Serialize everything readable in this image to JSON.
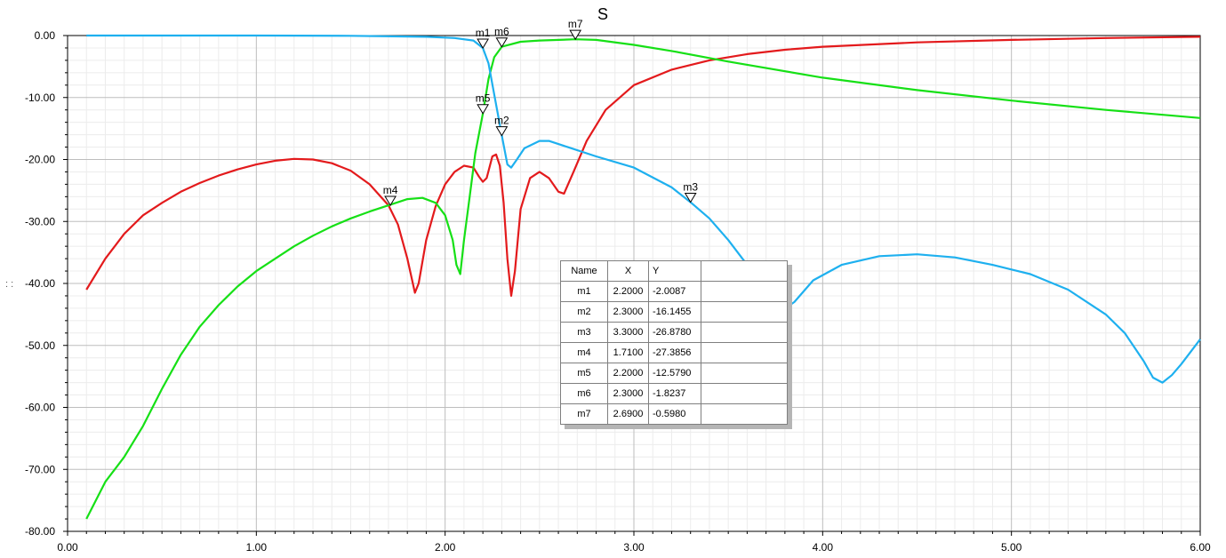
{
  "chart_data": {
    "type": "line",
    "title": "S",
    "xlim": [
      0,
      6
    ],
    "ylim": [
      -80,
      0
    ],
    "x_ticks": [
      "0.00",
      "1.00",
      "2.00",
      "3.00",
      "4.00",
      "5.00",
      "6.00"
    ],
    "y_ticks": [
      "0.00",
      "-10.00",
      "-20.00",
      "-30.00",
      "-40.00",
      "-50.00",
      "-60.00",
      "-70.00",
      "-80.00"
    ],
    "grid": true,
    "series": [
      {
        "color": "#e31a1c",
        "points": [
          [
            0.1,
            -41
          ],
          [
            0.2,
            -36
          ],
          [
            0.3,
            -32
          ],
          [
            0.4,
            -29
          ],
          [
            0.5,
            -27
          ],
          [
            0.6,
            -25.2
          ],
          [
            0.7,
            -23.8
          ],
          [
            0.8,
            -22.6
          ],
          [
            0.9,
            -21.6
          ],
          [
            1.0,
            -20.8
          ],
          [
            1.1,
            -20.2
          ],
          [
            1.2,
            -19.9
          ],
          [
            1.3,
            -20.0
          ],
          [
            1.4,
            -20.6
          ],
          [
            1.5,
            -21.8
          ],
          [
            1.6,
            -24
          ],
          [
            1.7,
            -27.4
          ],
          [
            1.75,
            -30.5
          ],
          [
            1.8,
            -36
          ],
          [
            1.84,
            -41.5
          ],
          [
            1.86,
            -40
          ],
          [
            1.9,
            -33
          ],
          [
            1.95,
            -27.5
          ],
          [
            2.0,
            -24
          ],
          [
            2.05,
            -22
          ],
          [
            2.1,
            -21
          ],
          [
            2.15,
            -21.3
          ],
          [
            2.18,
            -22.8
          ],
          [
            2.2,
            -23.6
          ],
          [
            2.22,
            -23
          ],
          [
            2.25,
            -19.5
          ],
          [
            2.27,
            -19.2
          ],
          [
            2.29,
            -21
          ],
          [
            2.31,
            -27
          ],
          [
            2.33,
            -36
          ],
          [
            2.35,
            -42
          ],
          [
            2.37,
            -38
          ],
          [
            2.4,
            -28
          ],
          [
            2.45,
            -23
          ],
          [
            2.5,
            -22
          ],
          [
            2.55,
            -23
          ],
          [
            2.6,
            -25.2
          ],
          [
            2.63,
            -25.5
          ],
          [
            2.68,
            -22
          ],
          [
            2.75,
            -17
          ],
          [
            2.85,
            -12
          ],
          [
            3.0,
            -8
          ],
          [
            3.2,
            -5.5
          ],
          [
            3.4,
            -4
          ],
          [
            3.6,
            -3
          ],
          [
            3.8,
            -2.3
          ],
          [
            4.0,
            -1.8
          ],
          [
            4.5,
            -1.1
          ],
          [
            5.0,
            -0.7
          ],
          [
            5.5,
            -0.4
          ],
          [
            6.0,
            -0.2
          ]
        ]
      },
      {
        "color": "#16e016",
        "points": [
          [
            0.1,
            -78
          ],
          [
            0.2,
            -72
          ],
          [
            0.3,
            -68
          ],
          [
            0.4,
            -63
          ],
          [
            0.5,
            -57
          ],
          [
            0.6,
            -51.5
          ],
          [
            0.7,
            -47
          ],
          [
            0.8,
            -43.5
          ],
          [
            0.9,
            -40.5
          ],
          [
            1.0,
            -38
          ],
          [
            1.1,
            -36
          ],
          [
            1.2,
            -34
          ],
          [
            1.3,
            -32.3
          ],
          [
            1.4,
            -30.8
          ],
          [
            1.5,
            -29.5
          ],
          [
            1.6,
            -28.4
          ],
          [
            1.7,
            -27.4
          ],
          [
            1.8,
            -26.4
          ],
          [
            1.88,
            -26.2
          ],
          [
            1.95,
            -27
          ],
          [
            2.0,
            -29
          ],
          [
            2.04,
            -33
          ],
          [
            2.06,
            -37
          ],
          [
            2.08,
            -38.5
          ],
          [
            2.1,
            -33
          ],
          [
            2.13,
            -26
          ],
          [
            2.16,
            -19
          ],
          [
            2.2,
            -12.6
          ],
          [
            2.23,
            -7
          ],
          [
            2.26,
            -3.5
          ],
          [
            2.3,
            -1.8
          ],
          [
            2.4,
            -1.0
          ],
          [
            2.5,
            -0.8
          ],
          [
            2.69,
            -0.6
          ],
          [
            2.8,
            -0.7
          ],
          [
            3.0,
            -1.5
          ],
          [
            3.2,
            -2.5
          ],
          [
            3.5,
            -4.2
          ],
          [
            4.0,
            -6.8
          ],
          [
            4.5,
            -8.8
          ],
          [
            5.0,
            -10.5
          ],
          [
            5.5,
            -12
          ],
          [
            6.0,
            -13.3
          ]
        ]
      },
      {
        "color": "#1eb0ef",
        "points": [
          [
            0.1,
            0
          ],
          [
            1.0,
            0
          ],
          [
            1.5,
            -0.05
          ],
          [
            1.9,
            -0.2
          ],
          [
            2.05,
            -0.4
          ],
          [
            2.15,
            -0.8
          ],
          [
            2.2,
            -2.0
          ],
          [
            2.23,
            -4.5
          ],
          [
            2.26,
            -9.5
          ],
          [
            2.3,
            -16.1
          ],
          [
            2.33,
            -20.8
          ],
          [
            2.35,
            -21.3
          ],
          [
            2.38,
            -20
          ],
          [
            2.42,
            -18.2
          ],
          [
            2.5,
            -17
          ],
          [
            2.55,
            -17
          ],
          [
            2.65,
            -18
          ],
          [
            2.8,
            -19.5
          ],
          [
            3.0,
            -21.3
          ],
          [
            3.2,
            -24.5
          ],
          [
            3.3,
            -26.9
          ],
          [
            3.4,
            -29.5
          ],
          [
            3.5,
            -33
          ],
          [
            3.6,
            -37
          ],
          [
            3.7,
            -41
          ],
          [
            3.78,
            -44.5
          ],
          [
            3.85,
            -43
          ],
          [
            3.95,
            -39.5
          ],
          [
            4.1,
            -37
          ],
          [
            4.3,
            -35.6
          ],
          [
            4.5,
            -35.3
          ],
          [
            4.7,
            -35.8
          ],
          [
            4.9,
            -37
          ],
          [
            5.1,
            -38.5
          ],
          [
            5.3,
            -41
          ],
          [
            5.5,
            -45
          ],
          [
            5.6,
            -48
          ],
          [
            5.7,
            -52.5
          ],
          [
            5.75,
            -55.2
          ],
          [
            5.8,
            -56
          ],
          [
            5.85,
            -54.8
          ],
          [
            5.9,
            -53
          ],
          [
            6.0,
            -49
          ]
        ]
      }
    ],
    "markers": [
      {
        "name": "m1",
        "x": 2.2,
        "y": -2.0087
      },
      {
        "name": "m2",
        "x": 2.3,
        "y": -16.1455
      },
      {
        "name": "m3",
        "x": 3.3,
        "y": -26.878
      },
      {
        "name": "m4",
        "x": 1.71,
        "y": -27.3856
      },
      {
        "name": "m5",
        "x": 2.2,
        "y": -12.579
      },
      {
        "name": "m6",
        "x": 2.3,
        "y": -1.8237
      },
      {
        "name": "m7",
        "x": 2.69,
        "y": -0.598
      }
    ]
  },
  "marker_table": {
    "headers": [
      "Name",
      "X",
      "Y"
    ],
    "rows": [
      [
        "m1",
        "2.2000",
        "-2.0087"
      ],
      [
        "m2",
        "2.3000",
        "-16.1455"
      ],
      [
        "m3",
        "3.3000",
        "-26.8780"
      ],
      [
        "m4",
        "1.7100",
        "-27.3856"
      ],
      [
        "m5",
        "2.2000",
        "-12.5790"
      ],
      [
        "m6",
        "2.3000",
        "-1.8237"
      ],
      [
        "m7",
        "2.6900",
        "-0.5980"
      ]
    ]
  }
}
